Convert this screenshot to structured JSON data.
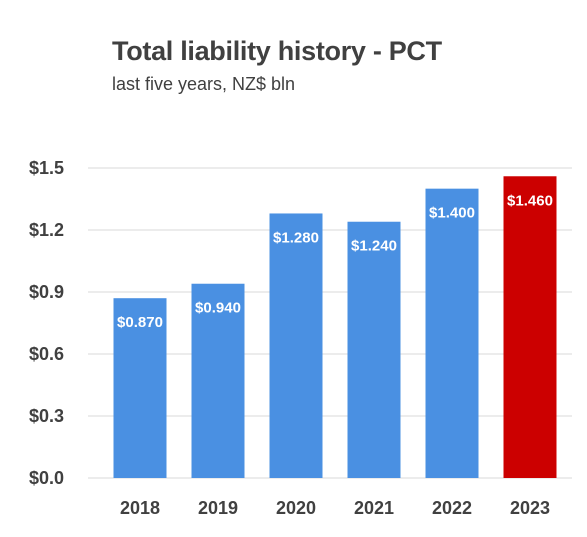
{
  "chart_data": {
    "type": "bar",
    "title": "Total liability history - PCT",
    "subtitle": "last five years, NZ$ bln",
    "categories": [
      "2018",
      "2019",
      "2020",
      "2021",
      "2022",
      "2023"
    ],
    "values": [
      0.87,
      0.94,
      1.28,
      1.24,
      1.4,
      1.46
    ],
    "data_labels": [
      "$0.870",
      "$0.940",
      "$1.280",
      "$1.240",
      "$1.400",
      "$1.460"
    ],
    "bar_colors": [
      "#4a90e2",
      "#4a90e2",
      "#4a90e2",
      "#4a90e2",
      "#4a90e2",
      "#cc0000"
    ],
    "ylim": [
      0,
      1.5
    ],
    "yticks": [
      0.0,
      0.3,
      0.6,
      0.9,
      1.2,
      1.5
    ],
    "ytick_labels": [
      "$0.0",
      "$0.3",
      "$0.6",
      "$0.9",
      "$1.2",
      "$1.5"
    ],
    "xlabel": "",
    "ylabel": "",
    "grid": "horizontal",
    "legend": "none"
  }
}
